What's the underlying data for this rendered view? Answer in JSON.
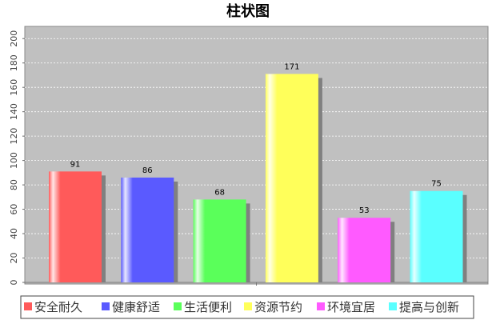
{
  "chart_data": {
    "type": "bar",
    "title": "柱状图",
    "xlabel": "",
    "ylabel": "",
    "categories": [
      "安全耐久",
      "健康舒适",
      "生活便利",
      "资源节约",
      "环境宜居",
      "提高与创新"
    ],
    "values": [
      91,
      86,
      68,
      171,
      53,
      75
    ],
    "colors": [
      "#ff5a5a",
      "#5a5aff",
      "#5aff5a",
      "#ffff5a",
      "#ff5aff",
      "#5affff"
    ],
    "ylim": [
      0,
      210
    ],
    "yticks": [
      0,
      20,
      40,
      60,
      80,
      100,
      120,
      140,
      160,
      180,
      200
    ],
    "grid": true,
    "legend_position": "bottom",
    "plot_background": "#c0c0c0"
  }
}
